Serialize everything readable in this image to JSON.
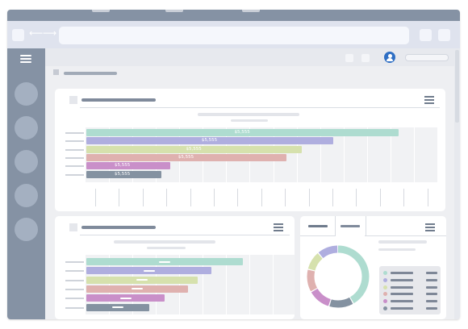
{
  "chart_top": {
    "type": "bar",
    "orientation": "horizontal",
    "values": [
      100,
      79,
      69,
      64,
      27,
      24
    ],
    "labels": [
      "$5,555",
      "$5,555",
      "$5,555",
      "$5,555",
      "$5,555",
      "$5,555"
    ],
    "colors": [
      "#aedcd0",
      "#afaedf",
      "#d6e1ad",
      "#dfb1af",
      "#c98fc9",
      "#8492a1"
    ]
  },
  "chart_bottom_left": {
    "type": "bar",
    "orientation": "horizontal",
    "values": [
      100,
      80,
      71,
      65,
      50,
      40
    ],
    "colors": [
      "#aedcd0",
      "#afaedf",
      "#d6e1ad",
      "#dfb1af",
      "#c98fc9",
      "#8492a1"
    ]
  },
  "chart_donut": {
    "type": "pie",
    "values": [
      42,
      13,
      12,
      12,
      10,
      11
    ],
    "colors": [
      "#aedcd0",
      "#8492a1",
      "#c98fc9",
      "#dfb1af",
      "#d6e1ad",
      "#afaedf"
    ]
  },
  "colors": {
    "chrome": "#8592a4",
    "toolbar": "#dfe3ee",
    "accent_user": "#2f6fc4"
  },
  "icons": [
    "hamburger-menu-icon",
    "back-arrow-icon",
    "forward-arrow-icon",
    "user-icon",
    "home-icon",
    "card-menu-icon"
  ]
}
